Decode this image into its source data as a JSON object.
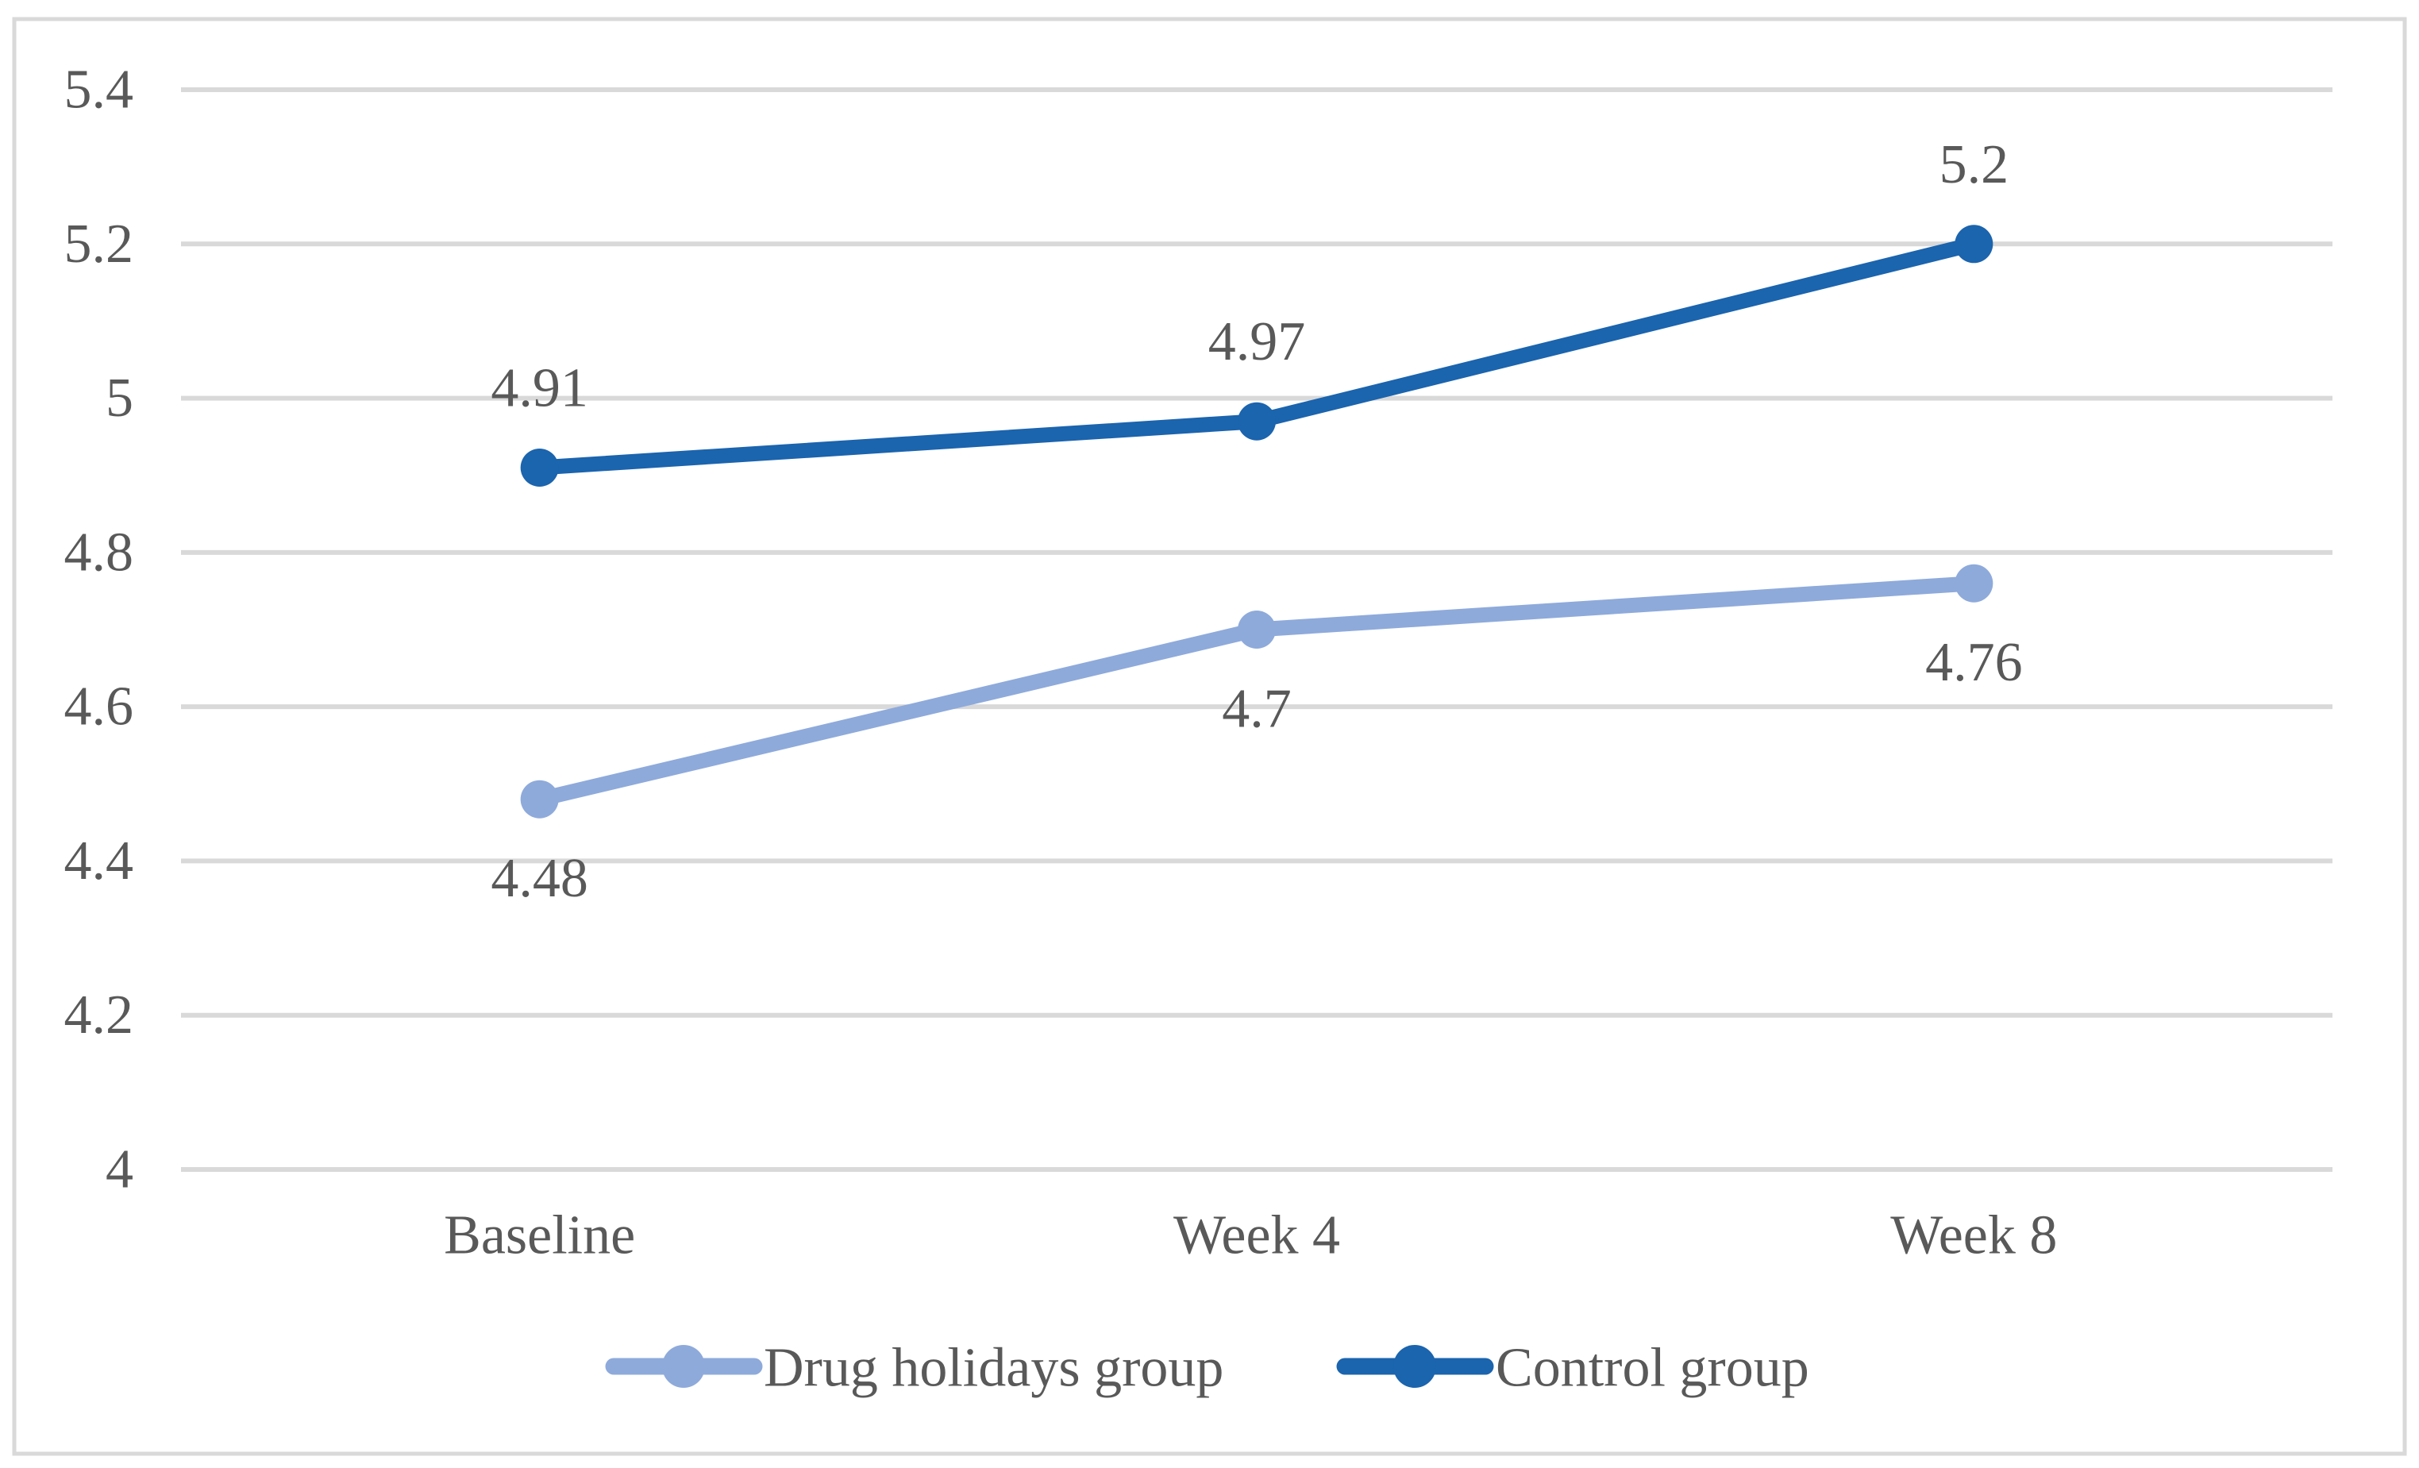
{
  "chart_data": {
    "type": "line",
    "title": "",
    "xlabel": "",
    "ylabel": "",
    "categories": [
      "Baseline",
      "Week 4",
      "Week 8"
    ],
    "series": [
      {
        "name": "Drug holidays group",
        "values": [
          4.48,
          4.7,
          4.76
        ],
        "data_labels": [
          "4.48",
          "4.7",
          "4.76"
        ],
        "label_position": "below",
        "color": "#8eaadb"
      },
      {
        "name": "Control group",
        "values": [
          4.91,
          4.97,
          5.2
        ],
        "data_labels": [
          "4.91",
          "4.97",
          "5.2"
        ],
        "label_position": "above",
        "color": "#1b64ae"
      }
    ],
    "y_axis": {
      "min": 4,
      "max": 5.4,
      "step": 0.2,
      "tick_labels": [
        "4",
        "4.2",
        "4.4",
        "4.6",
        "4.8",
        "5",
        "5.2",
        "5.4"
      ]
    },
    "grid": true,
    "legend_position": "bottom",
    "colors": {
      "gridline": "#d9d9d9",
      "figure_border": "#d9d9d9",
      "text": "#595959",
      "background": "#ffffff"
    }
  }
}
